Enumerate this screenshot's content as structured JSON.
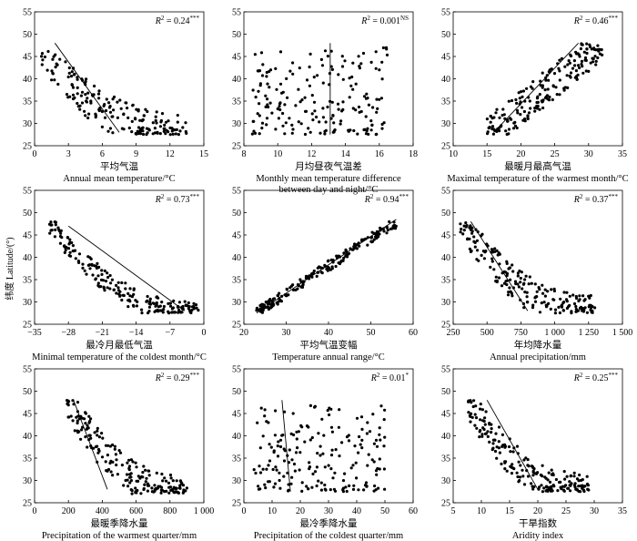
{
  "ylabel": "纬度 Latitude/(°)",
  "chart_data": [
    {
      "type": "scatter",
      "xlabel_cn": "平均气温",
      "xlabel_en": "Annual mean temperature/°C",
      "r2_value": "0.24",
      "r2_sig": "***",
      "xlim": [
        0,
        15
      ],
      "xticks": [
        0,
        3,
        6,
        9,
        12,
        15
      ],
      "ylim": [
        25,
        55
      ],
      "yticks": [
        25,
        30,
        35,
        40,
        45,
        50,
        55
      ],
      "fit_line": [
        [
          1.8,
          48
        ],
        [
          7.5,
          28
        ]
      ],
      "cloud": {
        "n": 190,
        "x0": 0.5,
        "x1": 13.5,
        "yfloor": 27.5,
        "ytop": 47,
        "trend": -1,
        "spread": 4.5
      }
    },
    {
      "type": "scatter",
      "xlabel_cn": "月均昼夜气温差",
      "xlabel_en": "Monthly mean temperature difference between day and night/°C",
      "r2_value": "0.001",
      "r2_sig": "NS",
      "xlim": [
        8,
        18
      ],
      "xticks": [
        8,
        10,
        12,
        14,
        16,
        18
      ],
      "ylim": [
        25,
        55
      ],
      "yticks": [
        25,
        30,
        35,
        40,
        45,
        50,
        55
      ],
      "fit_line": [
        [
          13.1,
          48
        ],
        [
          13.1,
          27.5
        ]
      ],
      "cloud": {
        "n": 190,
        "x0": 8.5,
        "x1": 16.5,
        "yfloor": 27.5,
        "ytop": 47,
        "trend": 0,
        "spread": 5
      }
    },
    {
      "type": "scatter",
      "xlabel_cn": "最暖月最高气温",
      "xlabel_en": "Maximal temperature of the warmest month/°C",
      "r2_value": "0.46",
      "r2_sig": "***",
      "xlim": [
        10,
        35
      ],
      "xticks": [
        10,
        15,
        20,
        25,
        30,
        35
      ],
      "ylim": [
        25,
        55
      ],
      "yticks": [
        25,
        30,
        35,
        40,
        45,
        50,
        55
      ],
      "fit_line": [
        [
          16,
          28
        ],
        [
          28.5,
          48
        ]
      ],
      "cloud": {
        "n": 200,
        "x0": 15,
        "x1": 32,
        "yfloor": 27.5,
        "ytop": 48,
        "trend": 1,
        "spread": 4
      }
    },
    {
      "type": "scatter",
      "xlabel_cn": "最冷月最低气温",
      "xlabel_en": "Minimal temperature of the coldest month/°C",
      "r2_value": "0.73",
      "r2_sig": "***",
      "xlim": [
        -35,
        0
      ],
      "xticks": [
        -35,
        -28,
        -21,
        -14,
        -7,
        0
      ],
      "xticklabels": [
        "−35",
        "−28",
        "−21",
        "−14",
        "−7",
        "0"
      ],
      "ylim": [
        25,
        55
      ],
      "yticks": [
        25,
        30,
        35,
        40,
        45,
        50,
        55
      ],
      "fit_line": [
        [
          -28,
          47
        ],
        [
          -4,
          28
        ]
      ],
      "cloud": {
        "n": 200,
        "x0": -32,
        "x1": -1,
        "yfloor": 27.5,
        "ytop": 48,
        "trend": -1,
        "spread": 2.5
      }
    },
    {
      "type": "scatter",
      "xlabel_cn": "平均气温变幅",
      "xlabel_en": "Temperature annual range/°C",
      "r2_value": "0.94",
      "r2_sig": "***",
      "xlim": [
        20,
        60
      ],
      "xticks": [
        20,
        30,
        40,
        50,
        60
      ],
      "ylim": [
        25,
        55
      ],
      "yticks": [
        25,
        30,
        35,
        40,
        45,
        50,
        55
      ],
      "fit_line": [
        [
          23,
          27.5
        ],
        [
          56,
          48.5
        ]
      ],
      "cloud": {
        "n": 200,
        "x0": 23,
        "x1": 56,
        "yfloor": 27.5,
        "ytop": 48,
        "trend": 1,
        "spread": 1.2
      }
    },
    {
      "type": "scatter",
      "xlabel_cn": "年均降水量",
      "xlabel_en": "Annual precipitation/mm",
      "r2_value": "0.37",
      "r2_sig": "***",
      "xlim": [
        250,
        1500
      ],
      "xticks": [
        250,
        500,
        750,
        1000,
        1250,
        1500
      ],
      "xticklabels": [
        "250",
        "500",
        "750",
        "1 000",
        "1 250",
        "1 500"
      ],
      "ylim": [
        25,
        55
      ],
      "yticks": [
        25,
        30,
        35,
        40,
        45,
        50,
        55
      ],
      "fit_line": [
        [
          380,
          48
        ],
        [
          800,
          28
        ]
      ],
      "cloud": {
        "n": 200,
        "x0": 300,
        "x1": 1300,
        "yfloor": 27.5,
        "ytop": 48,
        "trend": -1,
        "spread": 4
      }
    },
    {
      "type": "scatter",
      "xlabel_cn": "最暖季降水量",
      "xlabel_en": "Precipitation of the warmest quarter/mm",
      "r2_value": "0.29",
      "r2_sig": "***",
      "xlim": [
        0,
        1000
      ],
      "xticks": [
        0,
        200,
        400,
        600,
        800,
        1000
      ],
      "xticklabels": [
        "0",
        "200",
        "400",
        "600",
        "800",
        "1 000"
      ],
      "ylim": [
        25,
        55
      ],
      "yticks": [
        25,
        30,
        35,
        40,
        45,
        50,
        55
      ],
      "fit_line": [
        [
          230,
          48
        ],
        [
          430,
          28
        ]
      ],
      "cloud": {
        "n": 200,
        "x0": 190,
        "x1": 900,
        "yfloor": 27,
        "ytop": 48,
        "trend": -1,
        "spread": 4
      }
    },
    {
      "type": "scatter",
      "xlabel_cn": "最冷季降水量",
      "xlabel_en": "Precipitation of the coldest quarter/mm",
      "r2_value": "0.01",
      "r2_sig": "*",
      "xlim": [
        0,
        60
      ],
      "xticks": [
        0,
        10,
        20,
        30,
        40,
        50,
        60
      ],
      "ylim": [
        25,
        55
      ],
      "yticks": [
        25,
        30,
        35,
        40,
        45,
        50,
        55
      ],
      "fit_line": [
        [
          13.5,
          48
        ],
        [
          16.5,
          27.5
        ]
      ],
      "cloud": {
        "n": 190,
        "x0": 3,
        "x1": 50,
        "yfloor": 27.5,
        "ytop": 47,
        "trend": 0,
        "spread": 5
      }
    },
    {
      "type": "scatter",
      "xlabel_cn": "干旱指数",
      "xlabel_en": "Aridity index",
      "r2_value": "0.25",
      "r2_sig": "***",
      "xlim": [
        5,
        35
      ],
      "xticks": [
        5,
        10,
        15,
        20,
        25,
        30,
        35
      ],
      "ylim": [
        25,
        55
      ],
      "yticks": [
        25,
        30,
        35,
        40,
        45,
        50,
        55
      ],
      "fit_line": [
        [
          11,
          48
        ],
        [
          20,
          28
        ]
      ],
      "cloud": {
        "n": 200,
        "x0": 7.5,
        "x1": 29,
        "yfloor": 27.5,
        "ytop": 48,
        "trend": -1,
        "spread": 4
      }
    }
  ]
}
